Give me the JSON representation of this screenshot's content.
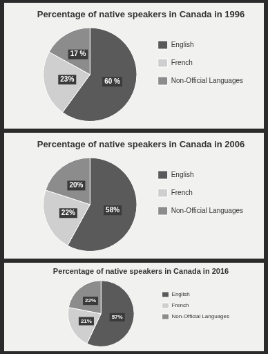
{
  "chart_data": [
    {
      "type": "pie",
      "title": "Percentage of native speakers in Canada in 1996",
      "categories": [
        "English",
        "French",
        "Non-Official Languages"
      ],
      "values": [
        60,
        23,
        17
      ],
      "value_labels": [
        "60 %",
        "23%",
        "17 %"
      ],
      "colors": [
        "#5a5a5a",
        "#cfcfcf",
        "#8c8c8c"
      ],
      "legend": "right",
      "data_labels": true
    },
    {
      "type": "pie",
      "title": "Percentage of native speakers in Canada in 2006",
      "categories": [
        "English",
        "French",
        "Non-Official Languages"
      ],
      "values": [
        58,
        22,
        20
      ],
      "value_labels": [
        "58%",
        "22%",
        "20%"
      ],
      "colors": [
        "#5a5a5a",
        "#cfcfcf",
        "#8c8c8c"
      ],
      "legend": "right",
      "data_labels": true
    },
    {
      "type": "pie",
      "title": "Percentage of native speakers in Canada in 2016",
      "categories": [
        "English",
        "French",
        "Non-Official Languages"
      ],
      "values": [
        57,
        21,
        22
      ],
      "value_labels": [
        "57%",
        "21%",
        "22%"
      ],
      "colors": [
        "#5a5a5a",
        "#cfcfcf",
        "#8c8c8c"
      ],
      "legend": "right",
      "data_labels": true
    }
  ]
}
